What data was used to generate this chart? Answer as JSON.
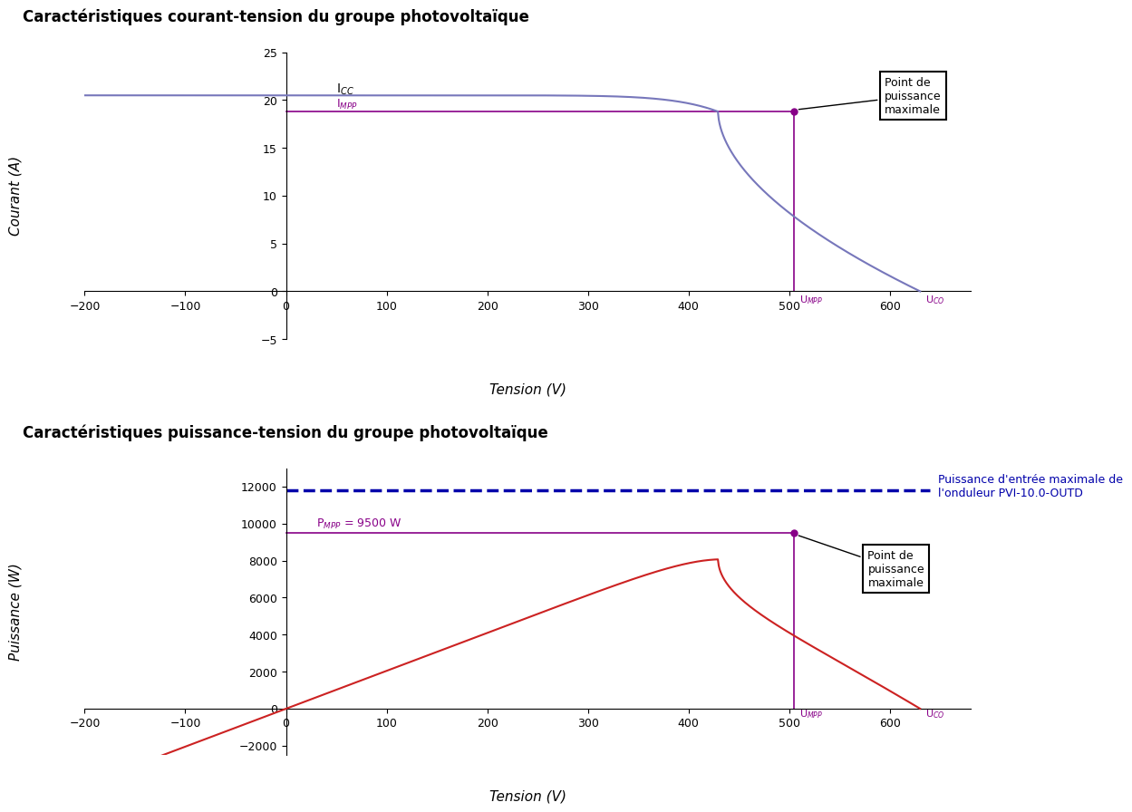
{
  "title1": "Caractéristiques courant-tension du groupe photovoltaïque",
  "title2": "Caractéristiques puissance-tension du groupe photovoltaïque",
  "Icc": 20.5,
  "Impp": 18.8,
  "Umpp": 505,
  "Uco": 630,
  "Pmpp": 9500,
  "P_max_onduleur": 11800,
  "xlabel": "Tension (V)",
  "ylabel1": "Courant (A)",
  "ylabel2": "Puissance (W)",
  "iv_curve_color": "#7777bb",
  "impp_line_color": "#880088",
  "umpp_line_color": "#880088",
  "power_curve_color": "#cc2222",
  "pmpp_line_color": "#880088",
  "onduleur_line_color": "#0000aa",
  "xlim": [
    -200,
    680
  ],
  "ylim1": [
    -5,
    25
  ],
  "ylim2": [
    -2500,
    13000
  ],
  "xticks": [
    -200,
    -100,
    0,
    100,
    200,
    300,
    400,
    500,
    600
  ],
  "yticks1": [
    -5,
    0,
    5,
    10,
    15,
    20,
    25
  ],
  "yticks2": [
    -2000,
    0,
    2000,
    4000,
    6000,
    8000,
    10000,
    12000
  ],
  "label_Icc": "I$_{CC}$",
  "label_Impp": "I$_{MPP}$",
  "label_Umpp": "U$_{MPP}$",
  "label_Uco": "U$_{CO}$",
  "label_Pmpp": "P$_{MPP}$ = 9500 W",
  "label_onduleur": "Puissance d'entrée maximale de\nl'onduleur PVI-10.0-OUTD",
  "point_label": "Point de\npuissance\nmaximale"
}
